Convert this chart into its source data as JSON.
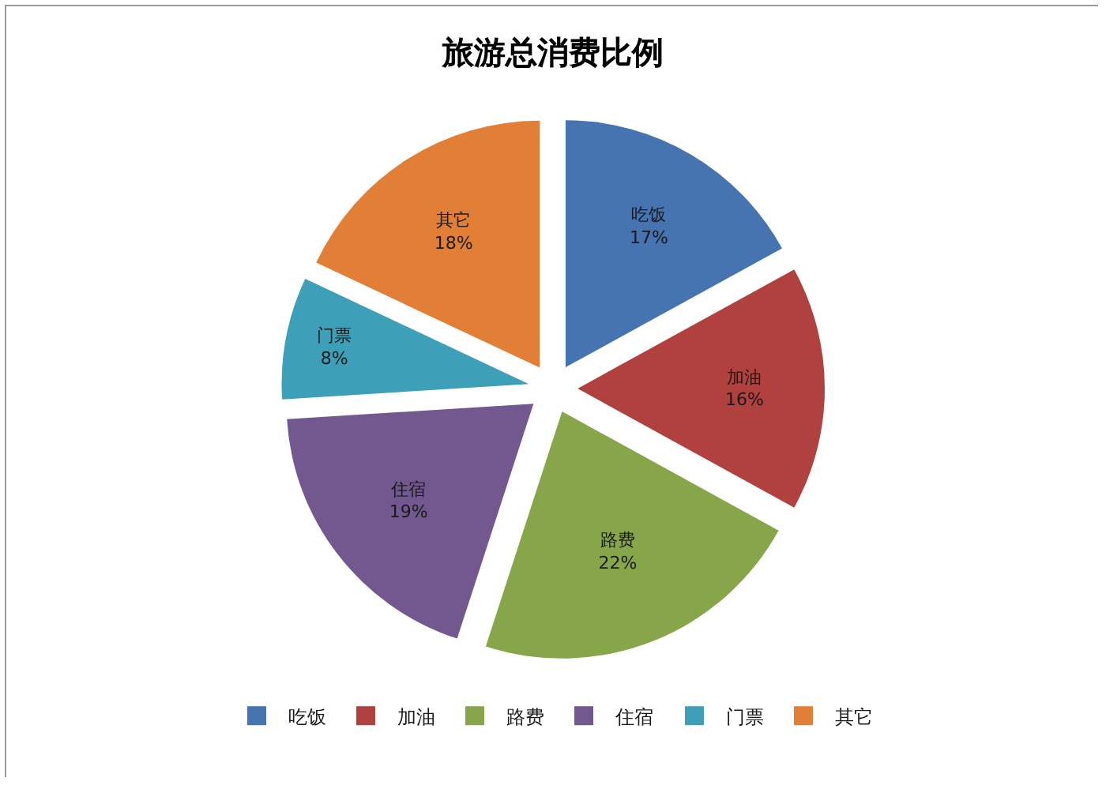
{
  "chart_data": {
    "type": "pie",
    "title": "旅游总消费比例",
    "categories": [
      "吃饭",
      "加油",
      "路费",
      "住宿",
      "门票",
      "其它"
    ],
    "values": [
      17,
      16,
      22,
      19,
      8,
      18
    ],
    "value_labels": [
      "17%",
      "16%",
      "22%",
      "19%",
      "8%",
      "18%"
    ],
    "colors": [
      "#4674b0",
      "#b0413e",
      "#87a64a",
      "#72588f",
      "#3d9fb8",
      "#e07f35"
    ],
    "legend": "bottom"
  }
}
